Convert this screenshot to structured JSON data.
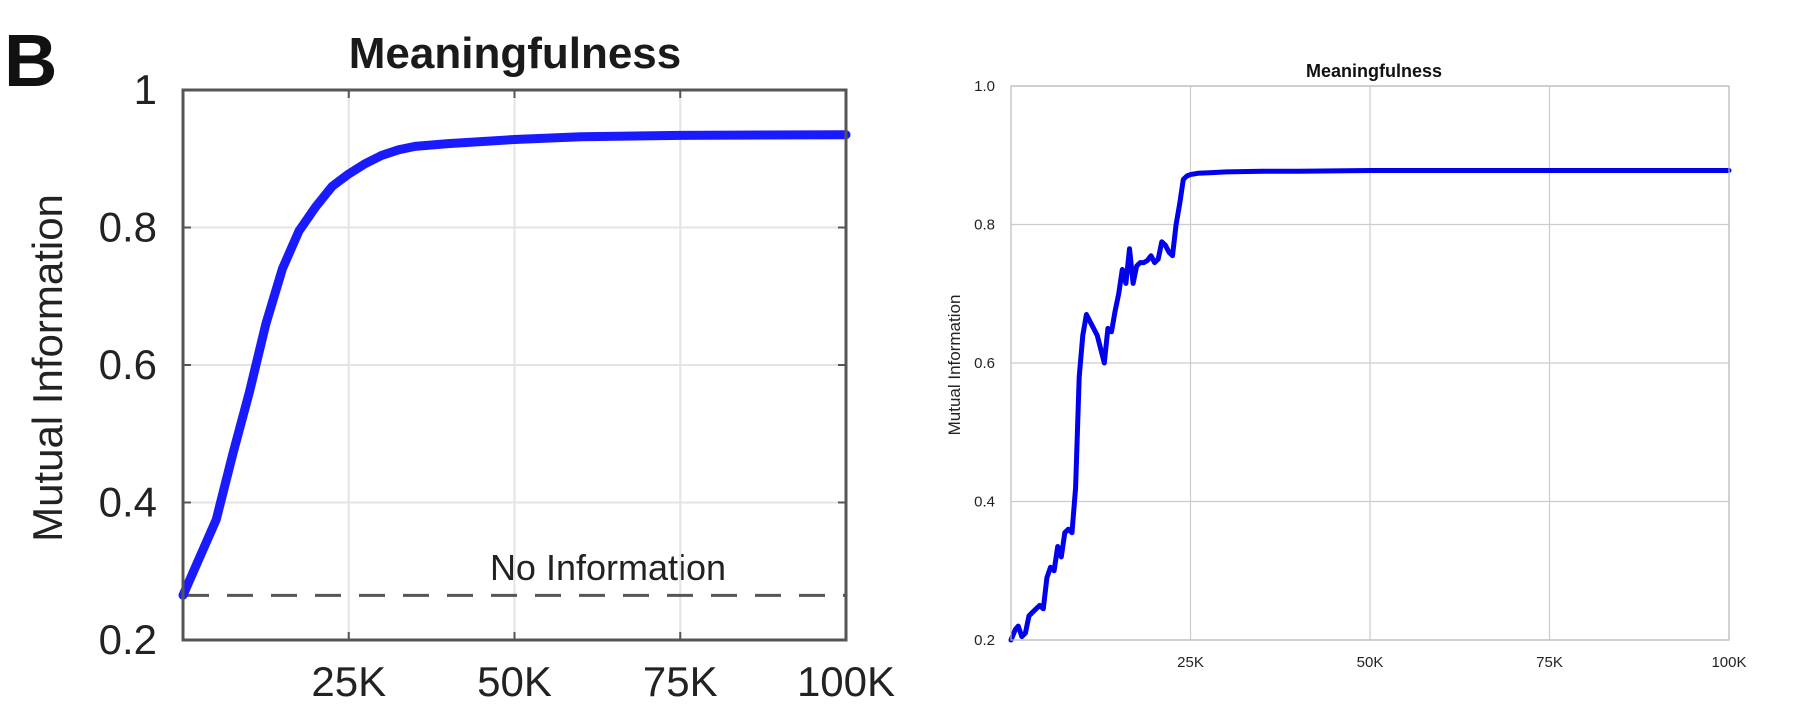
{
  "panel_label": "B",
  "chart_data": [
    {
      "type": "line",
      "title": "Meaningfulness",
      "xlabel": "",
      "ylabel": "Mutual Information",
      "xlim": [
        0,
        100000
      ],
      "ylim": [
        0.2,
        1.0
      ],
      "x_tick_labels": [
        "25K",
        "50K",
        "75K",
        "100K"
      ],
      "x_tick_values": [
        25000,
        50000,
        75000,
        100000
      ],
      "y_tick_labels": [
        "1",
        "0.8",
        "0.6",
        "0.4",
        "0.2"
      ],
      "y_tick_values": [
        1.0,
        0.8,
        0.6,
        0.4,
        0.2
      ],
      "grid": true,
      "annotations": [
        {
          "text": "No Information",
          "y": 0.265
        }
      ],
      "series": [
        {
          "color": "#1a1aff",
          "x": [
            0,
            2500,
            5000,
            7500,
            10000,
            12500,
            15000,
            17500,
            20000,
            22500,
            25000,
            27500,
            30000,
            32500,
            35000,
            40000,
            50000,
            60000,
            75000,
            100000
          ],
          "y": [
            0.265,
            0.32,
            0.375,
            0.47,
            0.56,
            0.66,
            0.74,
            0.795,
            0.83,
            0.86,
            0.878,
            0.893,
            0.905,
            0.913,
            0.918,
            0.922,
            0.928,
            0.932,
            0.934,
            0.935
          ]
        }
      ],
      "reference_line": {
        "y": 0.265,
        "style": "dashed"
      }
    },
    {
      "type": "line",
      "title": "Meaningfulness",
      "xlabel": "",
      "ylabel": "Mutual Information",
      "xlim": [
        0,
        100000
      ],
      "ylim": [
        0.2,
        1.0
      ],
      "x_tick_labels": [
        "25K",
        "50K",
        "75K",
        "100K"
      ],
      "x_tick_values": [
        25000,
        50000,
        75000,
        100000
      ],
      "y_tick_labels": [
        "1.0",
        "0.8",
        "0.6",
        "0.4",
        "0.2"
      ],
      "y_tick_values": [
        1.0,
        0.8,
        0.6,
        0.4,
        0.2
      ],
      "grid": true,
      "series": [
        {
          "color": "#0000ee",
          "x": [
            0,
            600,
            1000,
            1500,
            2000,
            2500,
            3000,
            3500,
            4000,
            4500,
            5000,
            5500,
            6000,
            6500,
            7000,
            7500,
            8000,
            8500,
            9000,
            9500,
            10000,
            10500,
            11000,
            11500,
            12000,
            12500,
            13000,
            13500,
            14000,
            14500,
            15000,
            15500,
            16000,
            16500,
            17000,
            17500,
            18000,
            18500,
            19000,
            19500,
            20000,
            20500,
            21000,
            21500,
            22000,
            22500,
            23000,
            23500,
            24000,
            24500,
            25000,
            26000,
            28000,
            30000,
            35000,
            40000,
            50000,
            60000,
            75000,
            100000
          ],
          "y": [
            0.2,
            0.215,
            0.22,
            0.205,
            0.21,
            0.235,
            0.24,
            0.245,
            0.25,
            0.245,
            0.29,
            0.305,
            0.3,
            0.335,
            0.32,
            0.355,
            0.36,
            0.355,
            0.42,
            0.58,
            0.64,
            0.67,
            0.66,
            0.65,
            0.64,
            0.62,
            0.6,
            0.65,
            0.645,
            0.675,
            0.7,
            0.735,
            0.715,
            0.765,
            0.715,
            0.74,
            0.745,
            0.745,
            0.748,
            0.755,
            0.745,
            0.75,
            0.775,
            0.77,
            0.76,
            0.755,
            0.8,
            0.83,
            0.865,
            0.87,
            0.872,
            0.874,
            0.875,
            0.876,
            0.877,
            0.877,
            0.878,
            0.878,
            0.878,
            0.878
          ]
        }
      ]
    }
  ]
}
